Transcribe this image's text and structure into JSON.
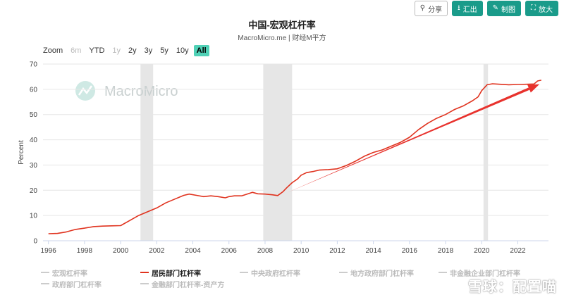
{
  "toolbar": {
    "share": {
      "label": "分享",
      "icon": "share-icon"
    },
    "export": {
      "label": "汇出",
      "icon": "download-icon"
    },
    "make": {
      "label": "制图",
      "icon": "pencil-icon"
    },
    "enlarge": {
      "label": "放大",
      "icon": "expand-icon"
    }
  },
  "zoom": {
    "label": "Zoom",
    "options": [
      {
        "label": "6m",
        "enabled": false
      },
      {
        "label": "YTD",
        "enabled": true
      },
      {
        "label": "1y",
        "enabled": false
      },
      {
        "label": "2y",
        "enabled": true
      },
      {
        "label": "3y",
        "enabled": true
      },
      {
        "label": "5y",
        "enabled": true
      },
      {
        "label": "10y",
        "enabled": true
      },
      {
        "label": "All",
        "enabled": true,
        "active": true
      }
    ]
  },
  "watermark": "MacroMicro",
  "watermark_bottom": "雪球：配置喵",
  "colors": {
    "accent": "#1a9b8a",
    "series": "#e0331f",
    "arrow": "#e8322d",
    "recession": "#e6e6e6"
  },
  "legend": [
    [
      {
        "label": "宏观杠杆率",
        "active": false
      },
      {
        "label": "居民部门杠杆率",
        "active": true
      },
      {
        "label": "中央政府杠杆率",
        "active": false
      },
      {
        "label": "地方政府部门杠杆率",
        "active": false
      },
      {
        "label": "非金融企业部门杠杆率",
        "active": false
      }
    ],
    [
      {
        "label": "政府部门杠杆率",
        "active": false
      },
      {
        "label": "金融部门杠杆率-资产方",
        "active": false
      }
    ]
  ],
  "chart_data": {
    "type": "line",
    "title": "中国-宏观杠杆率",
    "subtitle": "MacroMicro.me | 财经M平方",
    "ylabel": "Percent",
    "xlabel": "",
    "ylim": [
      0,
      70
    ],
    "yticks": [
      0,
      10,
      20,
      30,
      40,
      50,
      60,
      70
    ],
    "xlim": [
      1995.7,
      2023.7
    ],
    "xticks": [
      1996,
      1998,
      2000,
      2002,
      2004,
      2006,
      2008,
      2010,
      2012,
      2014,
      2016,
      2018,
      2020,
      2022
    ],
    "grid": true,
    "recessions": [
      [
        2001.1,
        2001.8
      ],
      [
        2007.9,
        2009.5
      ],
      [
        2020.1,
        2020.35
      ]
    ],
    "series": [
      {
        "name": "居民部门杠杆率",
        "x": [
          1996.0,
          1996.5,
          1997.0,
          1997.5,
          1998.0,
          1998.5,
          1999.0,
          1999.5,
          2000.0,
          2000.5,
          2001.0,
          2001.5,
          2002.0,
          2002.5,
          2003.0,
          2003.5,
          2003.8,
          2004.2,
          2004.6,
          2005.0,
          2005.4,
          2005.8,
          2006.0,
          2006.3,
          2006.7,
          2007.0,
          2007.3,
          2007.6,
          2008.0,
          2008.4,
          2008.7,
          2009.0,
          2009.2,
          2009.5,
          2009.8,
          2010.0,
          2010.3,
          2010.7,
          2011.0,
          2011.5,
          2012.0,
          2012.5,
          2013.0,
          2013.5,
          2014.0,
          2014.5,
          2015.0,
          2015.5,
          2016.0,
          2016.5,
          2017.0,
          2017.5,
          2018.0,
          2018.5,
          2019.0,
          2019.5,
          2019.8,
          2020.0,
          2020.3,
          2020.6,
          2021.0,
          2021.5,
          2022.0,
          2022.5,
          2022.9,
          2023.1,
          2023.3
        ],
        "y": [
          2.8,
          2.9,
          3.5,
          4.5,
          5.0,
          5.6,
          5.8,
          5.9,
          6.0,
          8.0,
          10.0,
          11.5,
          13.0,
          15.0,
          16.5,
          18.0,
          18.5,
          18.0,
          17.5,
          17.8,
          17.5,
          17.0,
          17.5,
          17.8,
          17.8,
          18.5,
          19.2,
          18.6,
          18.5,
          18.2,
          17.9,
          19.5,
          21.0,
          23.0,
          24.5,
          26.0,
          27.0,
          27.5,
          28.0,
          28.2,
          28.5,
          29.8,
          31.5,
          33.5,
          35.0,
          36.0,
          37.5,
          39.0,
          41.0,
          44.0,
          46.5,
          48.5,
          50.0,
          52.0,
          53.5,
          55.5,
          57.0,
          59.5,
          61.8,
          62.2,
          62.0,
          61.8,
          61.9,
          62.0,
          62.1,
          63.3,
          63.6
        ]
      }
    ],
    "annotations": [
      {
        "type": "arrow",
        "from": [
          2009.2,
          19.0
        ],
        "to": [
          2023.2,
          62.0
        ]
      }
    ]
  }
}
